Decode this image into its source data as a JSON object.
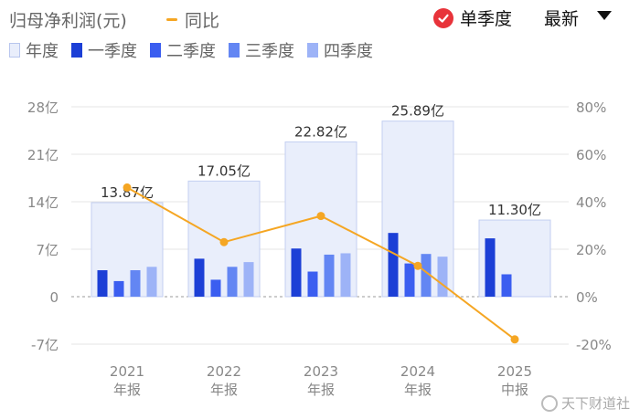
{
  "header": {
    "title": "归母净利润(元)",
    "yoy_label": "同比",
    "toggle_label": "单季度",
    "sort_label": "最新"
  },
  "legend": [
    {
      "label": "年度",
      "color": "#e9eefb"
    },
    {
      "label": "一季度",
      "color": "#1c3fd6"
    },
    {
      "label": "二季度",
      "color": "#3b5ef0"
    },
    {
      "label": "三季度",
      "color": "#6386f3"
    },
    {
      "label": "四季度",
      "color": "#9db3f7"
    }
  ],
  "watermark": "天下财道社",
  "chart_data": {
    "type": "bar",
    "categories": [
      "2021年报",
      "2022年报",
      "2023年报",
      "2024年报",
      "2025中报"
    ],
    "x_labels": [
      [
        "2021",
        "年报"
      ],
      [
        "2022",
        "年报"
      ],
      [
        "2023",
        "年报"
      ],
      [
        "2024",
        "年报"
      ],
      [
        "2025",
        "中报"
      ]
    ],
    "annual": [
      13.87,
      17.05,
      22.82,
      25.89,
      11.3
    ],
    "annual_labels": [
      "13.87亿",
      "17.05亿",
      "22.82亿",
      "25.89亿",
      "11.30亿"
    ],
    "series": [
      {
        "name": "一季度",
        "color": "#1c3fd6",
        "values": [
          3.9,
          5.6,
          7.1,
          9.4,
          8.6
        ]
      },
      {
        "name": "二季度",
        "color": "#3b5ef0",
        "values": [
          2.3,
          2.5,
          3.7,
          4.9,
          3.3
        ]
      },
      {
        "name": "三季度",
        "color": "#6386f3",
        "values": [
          3.9,
          4.4,
          6.2,
          6.3,
          null
        ]
      },
      {
        "name": "四季度",
        "color": "#9db3f7",
        "values": [
          4.4,
          5.1,
          6.4,
          5.9,
          null
        ]
      }
    ],
    "yoy": {
      "name": "同比",
      "color": "#f5a623",
      "values": [
        46,
        23,
        34,
        13,
        -18
      ]
    },
    "ylim_left": [
      -7,
      28
    ],
    "left_ticks": [
      {
        "value": 28,
        "label": "28亿"
      },
      {
        "value": 21,
        "label": "21亿"
      },
      {
        "value": 14,
        "label": "14亿"
      },
      {
        "value": 7,
        "label": "7亿"
      },
      {
        "value": 0,
        "label": "0"
      },
      {
        "value": -7,
        "label": "-7亿"
      }
    ],
    "ylim_right": [
      -20,
      80
    ],
    "right_ticks": [
      {
        "value": 80,
        "label": "80%"
      },
      {
        "value": 60,
        "label": "60%"
      },
      {
        "value": 40,
        "label": "40%"
      },
      {
        "value": 20,
        "label": "20%"
      },
      {
        "value": 0,
        "label": "0%"
      },
      {
        "value": -20,
        "label": "-20%"
      }
    ],
    "grid": true
  }
}
